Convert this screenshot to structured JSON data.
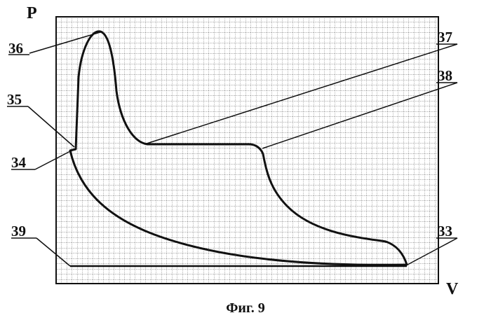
{
  "figure": {
    "caption": "Фиг. 9",
    "axis_y_label": "P",
    "axis_x_label": "V",
    "callouts": [
      "36",
      "37",
      "35",
      "38",
      "34",
      "39",
      "33"
    ]
  }
}
